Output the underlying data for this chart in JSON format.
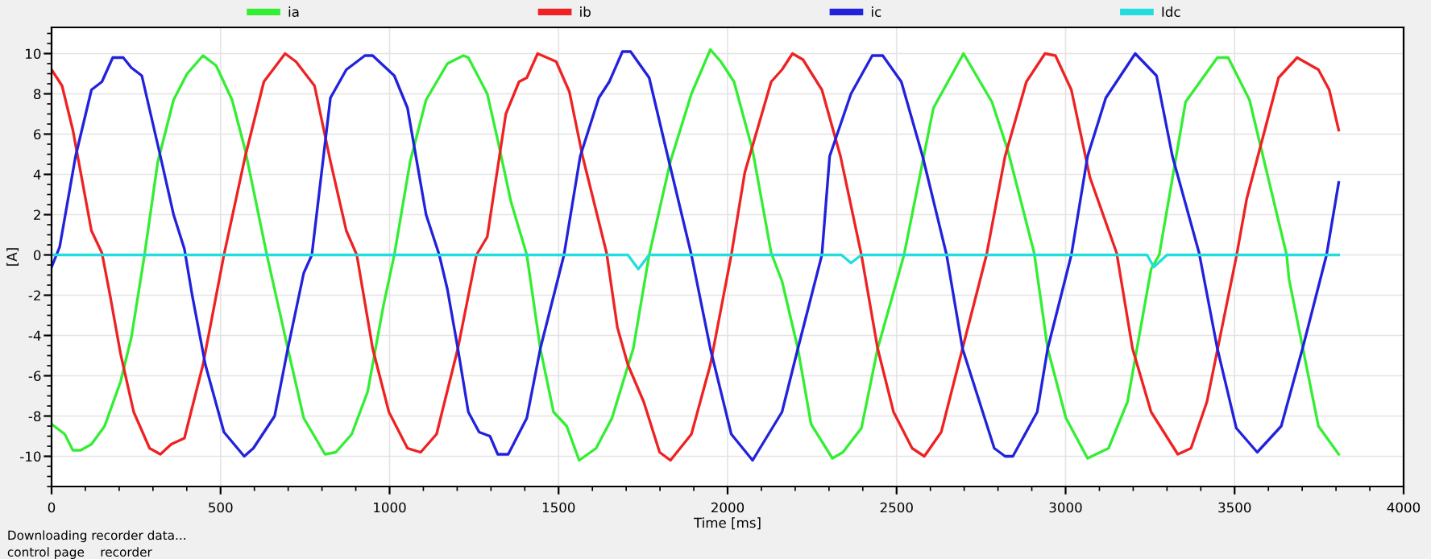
{
  "chart_data": {
    "type": "line",
    "xlabel": "Time [ms]",
    "ylabel": "[A]",
    "xlim": [
      0,
      4000
    ],
    "ylim": [
      -11.5,
      11.3
    ],
    "xticks": [
      0,
      500,
      1000,
      1500,
      2000,
      2500,
      3000,
      3500,
      4000
    ],
    "yticks": [
      -10,
      -8,
      -6,
      -4,
      -2,
      0,
      2,
      4,
      6,
      8,
      10
    ],
    "grid": true,
    "legend": "top",
    "marker": "none",
    "line_style": "solid",
    "annotations": [
      "Downloading recorder data...",
      "control page",
      "recorder"
    ],
    "series": [
      {
        "name": "ia",
        "color": "#33ee33",
        "x": [
          0,
          39,
          63,
          86,
          118,
          157,
          204,
          236,
          275,
          314,
          361,
          401,
          448,
          487,
          534,
          573,
          637,
          699,
          746,
          809,
          841,
          888,
          935,
          982,
          1014,
          1061,
          1108,
          1171,
          1218,
          1233,
          1289,
          1320,
          1359,
          1406,
          1446,
          1485,
          1524,
          1561,
          1611,
          1658,
          1721,
          1768,
          1831,
          1893,
          1949,
          1980,
          2019,
          2074,
          2129,
          2161,
          2208,
          2247,
          2310,
          2341,
          2396,
          2444,
          2522,
          2609,
          2698,
          2782,
          2829,
          2907,
          2947,
          3001,
          3065,
          3127,
          3183,
          3253,
          3277,
          3355,
          3449,
          3481,
          3544,
          3654,
          3661,
          3748,
          3808
        ],
        "values": [
          -8.4,
          -8.9,
          -9.7,
          -9.7,
          -9.4,
          -8.5,
          -6.3,
          -4.1,
          0,
          4.6,
          7.7,
          9.0,
          9.9,
          9.4,
          7.7,
          5.2,
          0,
          -4.65,
          -8.1,
          -9.9,
          -9.8,
          -8.9,
          -6.8,
          -2.5,
          0,
          4.65,
          7.7,
          9.5,
          9.9,
          9.8,
          8.0,
          5.7,
          2.65,
          0,
          -4.65,
          -7.8,
          -8.5,
          -10.2,
          -9.6,
          -8.1,
          -4.65,
          0,
          4.65,
          8.0,
          10.2,
          9.6,
          8.6,
          5.2,
          0.1,
          -1.3,
          -4.65,
          -8.4,
          -10.1,
          -9.8,
          -8.6,
          -4.65,
          0,
          7.3,
          10.0,
          7.6,
          5.2,
          0.1,
          -4.65,
          -8.1,
          -10.1,
          -9.6,
          -7.3,
          -0.7,
          0,
          7.6,
          9.8,
          9.8,
          7.7,
          0,
          -1.2,
          -8.5,
          -9.9
        ]
      },
      {
        "name": "ib",
        "color": "#ee2222",
        "x": [
          0,
          31,
          63,
          118,
          149,
          173,
          204,
          243,
          290,
          322,
          354,
          393,
          448,
          510,
          573,
          628,
          691,
          723,
          778,
          825,
          872,
          903,
          950,
          998,
          1053,
          1092,
          1139,
          1202,
          1257,
          1289,
          1344,
          1383,
          1406,
          1438,
          1493,
          1532,
          1571,
          1642,
          1674,
          1705,
          1752,
          1799,
          1831,
          1893,
          1949,
          2011,
          2051,
          2129,
          2161,
          2192,
          2223,
          2279,
          2334,
          2396,
          2444,
          2491,
          2546,
          2582,
          2632,
          2695,
          2766,
          2821,
          2884,
          2939,
          2970,
          3017,
          3072,
          3151,
          3198,
          3253,
          3332,
          3371,
          3418,
          3505,
          3536,
          3630,
          3685,
          3748,
          3780,
          3808
        ],
        "values": [
          9.2,
          8.4,
          6.2,
          1.2,
          0.1,
          -2.0,
          -4.9,
          -7.8,
          -9.6,
          -9.9,
          -9.4,
          -9.1,
          -5.45,
          0,
          4.9,
          8.6,
          10.0,
          9.6,
          8.4,
          4.65,
          1.2,
          0,
          -4.65,
          -7.8,
          -9.6,
          -9.8,
          -8.9,
          -4.65,
          0,
          0.9,
          7.0,
          8.6,
          8.8,
          10.0,
          9.6,
          8.1,
          4.9,
          0.1,
          -3.6,
          -5.45,
          -7.3,
          -9.8,
          -10.2,
          -8.9,
          -5.45,
          0,
          4.1,
          8.6,
          9.2,
          10.0,
          9.7,
          8.2,
          4.9,
          0,
          -4.65,
          -7.8,
          -9.6,
          -10.0,
          -8.8,
          -4.65,
          0,
          4.9,
          8.6,
          10.0,
          9.9,
          8.2,
          3.85,
          0.1,
          -4.65,
          -7.8,
          -9.9,
          -9.6,
          -7.3,
          -0.1,
          2.8,
          8.8,
          9.8,
          9.2,
          8.2,
          6.2
        ]
      },
      {
        "name": "ic",
        "color": "#2222dd",
        "x": [
          0,
          24,
          71,
          118,
          149,
          181,
          212,
          236,
          267,
          322,
          361,
          393,
          416,
          455,
          510,
          570,
          597,
          660,
          699,
          746,
          770,
          825,
          872,
          927,
          950,
          1014,
          1053,
          1108,
          1147,
          1171,
          1202,
          1233,
          1265,
          1297,
          1320,
          1351,
          1406,
          1446,
          1516,
          1564,
          1619,
          1650,
          1689,
          1713,
          1768,
          1823,
          1893,
          1949,
          2011,
          2074,
          2161,
          2208,
          2279,
          2302,
          2365,
          2428,
          2459,
          2514,
          2577,
          2648,
          2695,
          2789,
          2821,
          2844,
          2916,
          2947,
          3017,
          3065,
          3119,
          3206,
          3269,
          3316,
          3395,
          3449,
          3505,
          3567,
          3638,
          3701,
          3772,
          3808
        ],
        "values": [
          -0.6,
          0.4,
          4.9,
          8.2,
          8.6,
          9.8,
          9.8,
          9.3,
          8.9,
          4.9,
          2.0,
          0.3,
          -2.0,
          -5.45,
          -8.8,
          -10.0,
          -9.6,
          -8.0,
          -4.65,
          -0.9,
          0,
          7.8,
          9.2,
          9.9,
          9.9,
          8.9,
          7.3,
          2.0,
          0,
          -1.7,
          -4.65,
          -7.8,
          -8.8,
          -9.0,
          -9.9,
          -9.9,
          -8.1,
          -4.65,
          0,
          4.9,
          7.8,
          8.6,
          10.1,
          10.1,
          8.8,
          4.9,
          0,
          -4.65,
          -8.9,
          -10.2,
          -7.8,
          -4.65,
          0,
          4.9,
          8.0,
          9.9,
          9.9,
          8.6,
          4.9,
          0,
          -4.65,
          -9.6,
          -10.0,
          -10.0,
          -7.8,
          -4.65,
          0,
          4.9,
          7.8,
          10.0,
          8.9,
          4.9,
          0.1,
          -4.65,
          -8.6,
          -9.8,
          -8.5,
          -4.65,
          0,
          3.6
        ]
      },
      {
        "name": "Idc",
        "color": "#22dddd",
        "x": [
          0,
          1705,
          1736,
          1768,
          2337,
          2365,
          2396,
          3241,
          3261,
          3300,
          3808
        ],
        "values": [
          0,
          0,
          -0.7,
          0,
          0,
          -0.4,
          0,
          0,
          -0.6,
          0,
          0
        ]
      }
    ]
  }
}
